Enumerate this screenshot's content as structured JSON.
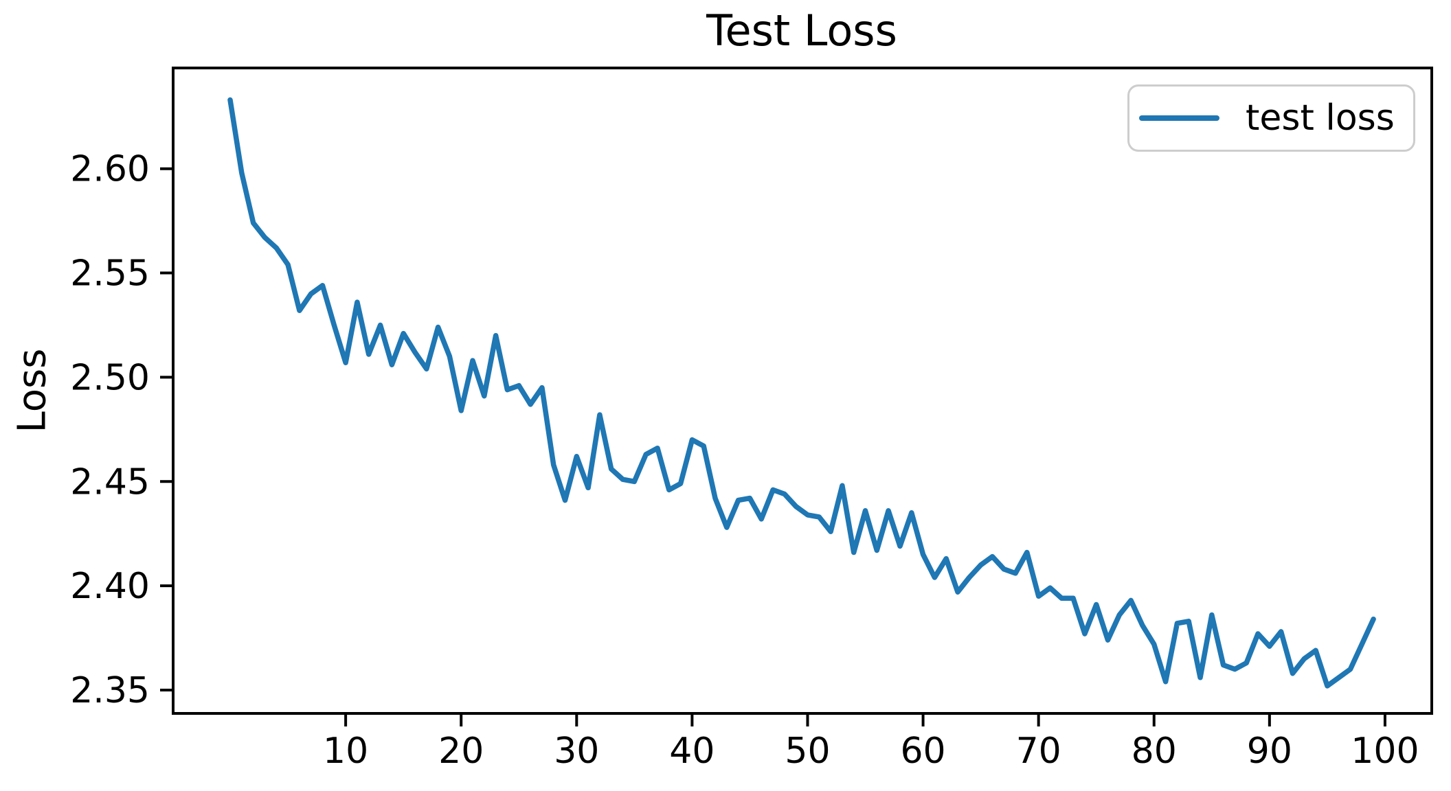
{
  "colors": {
    "background": "#ffffff",
    "line": "#1f77b4",
    "axis": "#000000",
    "text": "#000000",
    "legend_border": "#cdcdcd"
  },
  "chart_data": {
    "type": "line",
    "title": "Test Loss",
    "xlabel": "",
    "ylabel": "Loss",
    "grid": false,
    "legend_position": "upper right",
    "legend": [
      {
        "label": "test loss",
        "color": "#1f77b4"
      }
    ],
    "x_ticks": [
      10,
      20,
      30,
      40,
      50,
      60,
      70,
      80,
      90,
      100
    ],
    "y_ticks": [
      {
        "value": 2.35,
        "label": "2.35"
      },
      {
        "value": 2.4,
        "label": "2.40"
      },
      {
        "value": 2.45,
        "label": "2.45"
      },
      {
        "value": 2.5,
        "label": "2.50"
      },
      {
        "value": 2.55,
        "label": "2.55"
      },
      {
        "value": 2.6,
        "label": "2.60"
      }
    ],
    "xlim": [
      -4.94,
      104.05
    ],
    "ylim": [
      2.3388,
      2.6483
    ],
    "series": [
      {
        "name": "test loss",
        "color": "#1f77b4",
        "x_start": 0,
        "values": [
          2.633,
          2.598,
          2.574,
          2.567,
          2.562,
          2.554,
          2.532,
          2.54,
          2.544,
          2.525,
          2.507,
          2.536,
          2.511,
          2.525,
          2.506,
          2.521,
          2.512,
          2.504,
          2.524,
          2.51,
          2.484,
          2.508,
          2.491,
          2.52,
          2.494,
          2.496,
          2.487,
          2.495,
          2.458,
          2.441,
          2.462,
          2.447,
          2.482,
          2.456,
          2.451,
          2.45,
          2.463,
          2.466,
          2.446,
          2.449,
          2.47,
          2.467,
          2.442,
          2.428,
          2.441,
          2.442,
          2.432,
          2.446,
          2.444,
          2.438,
          2.434,
          2.433,
          2.426,
          2.448,
          2.416,
          2.436,
          2.417,
          2.436,
          2.419,
          2.435,
          2.415,
          2.404,
          2.413,
          2.397,
          2.404,
          2.41,
          2.414,
          2.408,
          2.406,
          2.416,
          2.395,
          2.399,
          2.394,
          2.394,
          2.377,
          2.391,
          2.374,
          2.386,
          2.393,
          2.381,
          2.372,
          2.354,
          2.382,
          2.383,
          2.356,
          2.386,
          2.362,
          2.36,
          2.363,
          2.377,
          2.371,
          2.378,
          2.358,
          2.365,
          2.369,
          2.352,
          2.356,
          2.36,
          2.372,
          2.384
        ]
      }
    ]
  }
}
